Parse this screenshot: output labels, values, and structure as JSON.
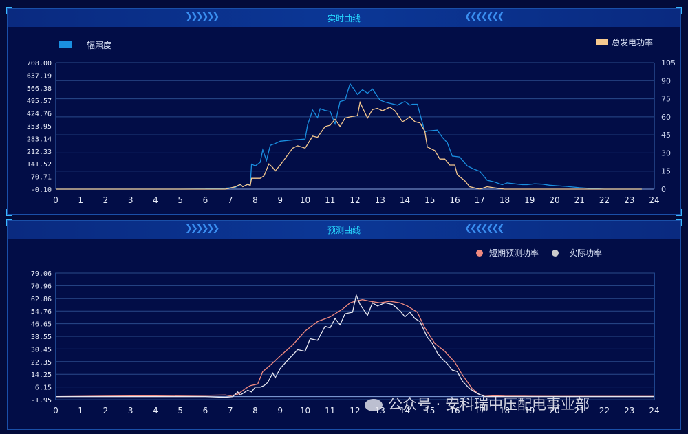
{
  "realtime": {
    "title": "实时曲线",
    "chart_data": {
      "type": "line",
      "title": "实时曲线",
      "x_ticks": [
        "0",
        "1",
        "2",
        "3",
        "4",
        "5",
        "6",
        "7",
        "8",
        "9",
        "10",
        "11",
        "12",
        "13",
        "14",
        "15",
        "16",
        "17",
        "18",
        "19",
        "20",
        "21",
        "22",
        "23",
        "24"
      ],
      "xlim": [
        0,
        24
      ],
      "y_left_ticks": [
        "-0.10",
        "70.71",
        "141.52",
        "212.33",
        "283.14",
        "353.95",
        "424.76",
        "495.57",
        "566.38",
        "637.19",
        "708.00"
      ],
      "y_left_lim": [
        -0.1,
        708.0
      ],
      "y_right_ticks": [
        "0",
        "15",
        "30",
        "45",
        "60",
        "75",
        "90",
        "105"
      ],
      "y_right_lim": [
        0,
        105
      ],
      "legend": {
        "left": "top-left",
        "right": "top-right"
      },
      "series": [
        {
          "name": "辐照度",
          "axis": "left",
          "color": "#1a8fe0",
          "x": [
            0,
            1,
            2,
            3,
            4,
            5,
            6,
            6.8,
            7.2,
            7.4,
            7.5,
            7.6,
            7.7,
            7.8,
            7.85,
            8.0,
            8.2,
            8.3,
            8.45,
            8.6,
            8.8,
            9.0,
            9.5,
            10.0,
            10.1,
            10.3,
            10.5,
            10.6,
            10.8,
            11.0,
            11.2,
            11.4,
            11.6,
            11.8,
            12.1,
            12.3,
            12.5,
            12.7,
            13.0,
            13.2,
            13.4,
            13.7,
            14.0,
            14.2,
            14.3,
            14.5,
            14.8,
            14.9,
            15.3,
            15.5,
            15.7,
            15.9,
            16.2,
            16.5,
            16.8,
            17.0,
            17.3,
            17.6,
            17.9,
            18.1,
            18.4,
            18.7,
            18.9,
            19.2,
            19.5,
            19.8,
            20.5,
            21.0,
            21.5,
            22.0,
            23.0,
            23.5
          ],
          "y": [
            0,
            0,
            0,
            0,
            0,
            0,
            1,
            5,
            10,
            25,
            15,
            20,
            30,
            25,
            140,
            130,
            150,
            220,
            160,
            245,
            255,
            268,
            275,
            280,
            360,
            442,
            400,
            450,
            440,
            435,
            365,
            490,
            498,
            590,
            530,
            556,
            536,
            560,
            498,
            487,
            480,
            470,
            490,
            470,
            475,
            475,
            320,
            325,
            330,
            290,
            260,
            185,
            180,
            130,
            110,
            100,
            50,
            40,
            25,
            35,
            30,
            25,
            25,
            30,
            28,
            22,
            15,
            8,
            3,
            0,
            0,
            0
          ]
        },
        {
          "name": "总发电功率",
          "axis": "right",
          "color": "#f6c98f",
          "x": [
            0,
            1,
            2,
            3,
            4,
            5,
            6,
            6.8,
            7.2,
            7.4,
            7.5,
            7.7,
            7.8,
            7.85,
            8.0,
            8.2,
            8.35,
            8.55,
            8.7,
            8.8,
            9.0,
            9.5,
            9.7,
            10.0,
            10.3,
            10.5,
            10.8,
            11.0,
            11.2,
            11.4,
            11.6,
            11.8,
            12.1,
            12.2,
            12.5,
            12.7,
            12.9,
            13.1,
            13.4,
            13.6,
            13.9,
            14.0,
            14.2,
            14.4,
            14.6,
            14.8,
            14.9,
            15.2,
            15.4,
            15.6,
            15.8,
            16.0,
            16.1,
            16.4,
            16.6,
            16.8,
            17.0,
            17.3,
            17.6,
            18.0,
            20.0,
            21.0,
            22.0,
            23.0,
            23.5
          ],
          "y": [
            0,
            0,
            0,
            0,
            0,
            0,
            0,
            0,
            2,
            4,
            2,
            4,
            3,
            9,
            9,
            9,
            11,
            21,
            18,
            15,
            20,
            34,
            36,
            34,
            44,
            43,
            52,
            53,
            58,
            52,
            59,
            60,
            61,
            72,
            59,
            66,
            67,
            65,
            68,
            65,
            56,
            57,
            60,
            56,
            55,
            48,
            35,
            32,
            25,
            25,
            20,
            20,
            12,
            7,
            2,
            1,
            0,
            2,
            1,
            0,
            0,
            0,
            0,
            0,
            0
          ]
        }
      ]
    }
  },
  "forecast": {
    "title": "预测曲线",
    "chart_data": {
      "type": "line",
      "title": "预测曲线",
      "x_ticks": [
        "0",
        "1",
        "2",
        "3",
        "4",
        "5",
        "6",
        "7",
        "8",
        "9",
        "10",
        "11",
        "12",
        "13",
        "14",
        "15",
        "16",
        "17",
        "18",
        "19",
        "20",
        "21",
        "22",
        "23",
        "24"
      ],
      "xlim": [
        0,
        24
      ],
      "y_ticks": [
        "-1.95",
        "6.15",
        "14.25",
        "22.35",
        "30.45",
        "38.55",
        "46.65",
        "54.76",
        "62.86",
        "70.96",
        "79.06"
      ],
      "ylim": [
        -1.95,
        79.06
      ],
      "legend": "top-right",
      "series": [
        {
          "name": "短期预测功率",
          "color": "#f08a80",
          "x": [
            0,
            2,
            4,
            6,
            6.8,
            7.0,
            7.3,
            7.6,
            7.8,
            8.1,
            8.3,
            8.6,
            9.0,
            9.5,
            10.0,
            10.5,
            11.0,
            11.5,
            11.8,
            12.0,
            12.3,
            12.6,
            13.0,
            13.4,
            13.8,
            14.1,
            14.5,
            14.8,
            15.2,
            15.6,
            16.0,
            16.3,
            16.7,
            17.0,
            17.5,
            18.0,
            19.0,
            20.0,
            22.0,
            24.0
          ],
          "y": [
            0,
            0.3,
            0.5,
            0.8,
            1.0,
            0.5,
            1.5,
            5,
            7,
            8,
            16,
            20,
            26,
            33,
            42,
            48,
            51,
            56,
            60,
            61,
            62,
            61,
            60,
            61,
            60,
            58,
            54,
            44,
            34,
            29,
            22,
            14,
            5,
            1,
            0.5,
            0.3,
            0.2,
            0.1,
            0.1,
            0.1
          ]
        },
        {
          "name": "实际功率",
          "color": "#e8e8f0",
          "x": [
            0,
            2,
            4,
            6,
            6.8,
            7.1,
            7.3,
            7.4,
            7.5,
            7.7,
            7.85,
            8.0,
            8.2,
            8.35,
            8.5,
            8.7,
            8.8,
            9.0,
            9.4,
            9.7,
            10.0,
            10.2,
            10.5,
            10.8,
            11.0,
            11.2,
            11.4,
            11.6,
            11.9,
            12.05,
            12.2,
            12.5,
            12.7,
            12.9,
            13.2,
            13.5,
            13.8,
            14.0,
            14.2,
            14.4,
            14.6,
            14.9,
            15.1,
            15.3,
            15.5,
            15.7,
            15.9,
            16.1,
            16.3,
            16.6,
            16.9,
            17.2,
            17.6,
            18.0,
            20.0,
            22.0,
            24.0
          ],
          "y": [
            0,
            0,
            0,
            0,
            -0.5,
            0,
            3,
            1,
            2,
            4,
            3,
            6,
            6,
            7,
            9,
            15,
            12,
            18,
            25,
            30,
            29,
            37,
            36,
            45,
            44,
            50,
            46,
            53,
            54,
            65,
            59,
            52,
            60,
            58,
            60,
            59,
            55,
            51,
            54,
            50,
            48,
            38,
            34,
            28,
            24,
            21,
            17,
            16,
            10,
            5,
            2,
            0,
            0,
            0,
            0,
            0,
            0
          ]
        }
      ]
    }
  },
  "watermark": "公众号 · 安科瑞中压配电事业部"
}
